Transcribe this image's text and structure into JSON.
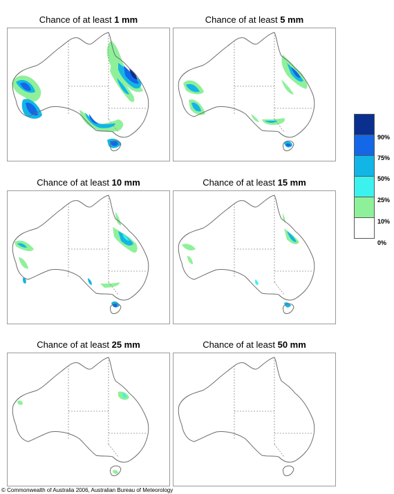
{
  "title_prefix": "Chance of at least",
  "panels": [
    {
      "amount": "1 mm"
    },
    {
      "amount": "5 mm"
    },
    {
      "amount": "10 mm"
    },
    {
      "amount": "15 mm"
    },
    {
      "amount": "25 mm"
    },
    {
      "amount": "50 mm"
    }
  ],
  "legend": {
    "colors": [
      "#0a2f8f",
      "#1467e6",
      "#12b6e6",
      "#3cf2ee",
      "#8ff09a",
      "#ffffff"
    ],
    "labels": [
      "90%",
      "75%",
      "50%",
      "25%",
      "10%",
      "0%"
    ]
  },
  "copyright": "© Commonwealth of Australia 2006, Australian Bureau of Meteorology"
}
